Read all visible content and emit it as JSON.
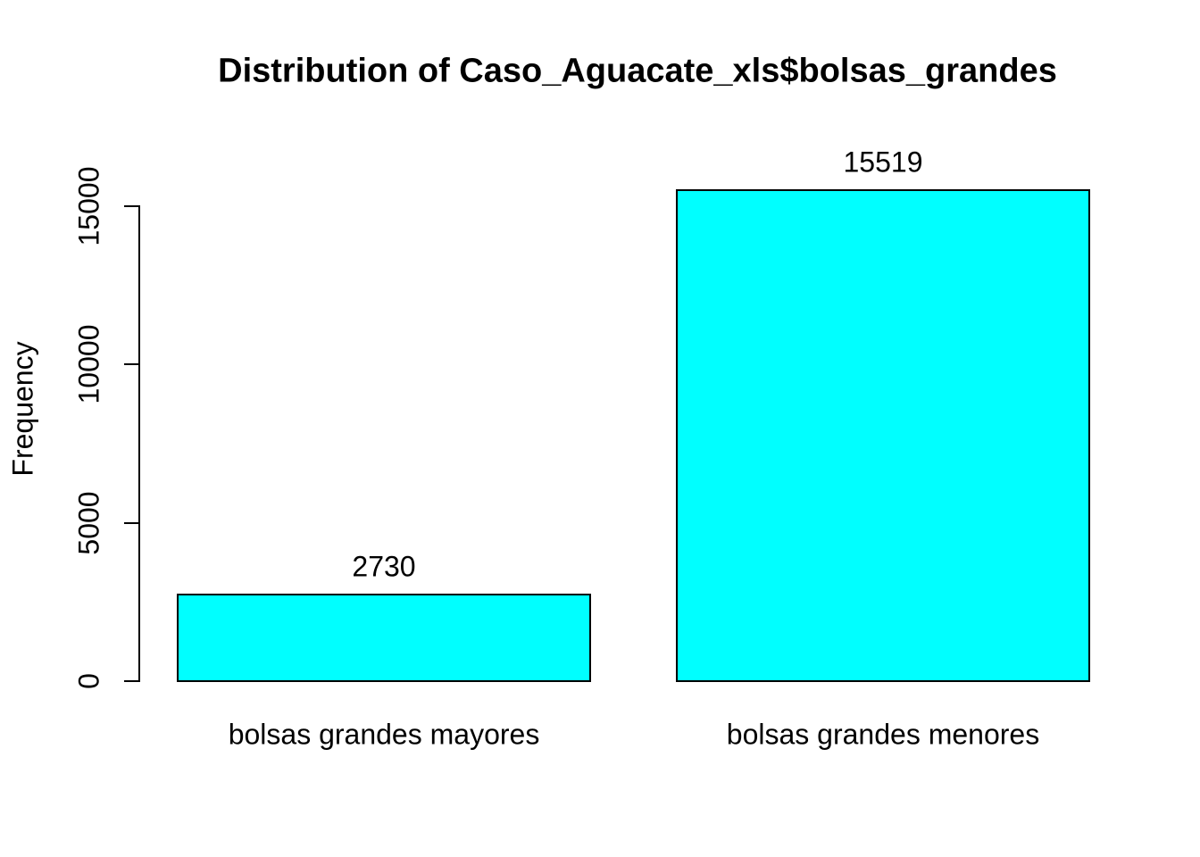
{
  "chart_data": {
    "type": "bar",
    "title": "Distribution of Caso_Aguacate_xls$bolsas_grandes",
    "xlabel": "",
    "ylabel": "Frequency",
    "categories": [
      "bolsas grandes mayores",
      "bolsas grandes menores"
    ],
    "values": [
      2730,
      15519
    ],
    "value_labels": [
      "2730",
      "15519"
    ],
    "y_ticks": [
      0,
      5000,
      10000,
      15000
    ],
    "y_tick_labels": [
      "0",
      "5000",
      "10000",
      "15000"
    ],
    "axis_max": 15000,
    "ylim": [
      0,
      15519
    ],
    "grid": false,
    "legend_position": "none",
    "colors": {
      "bar_fill": "#00FFFF",
      "bar_border": "#000000",
      "axis": "#000000",
      "text": "#000000",
      "background": "#FFFFFF"
    }
  }
}
